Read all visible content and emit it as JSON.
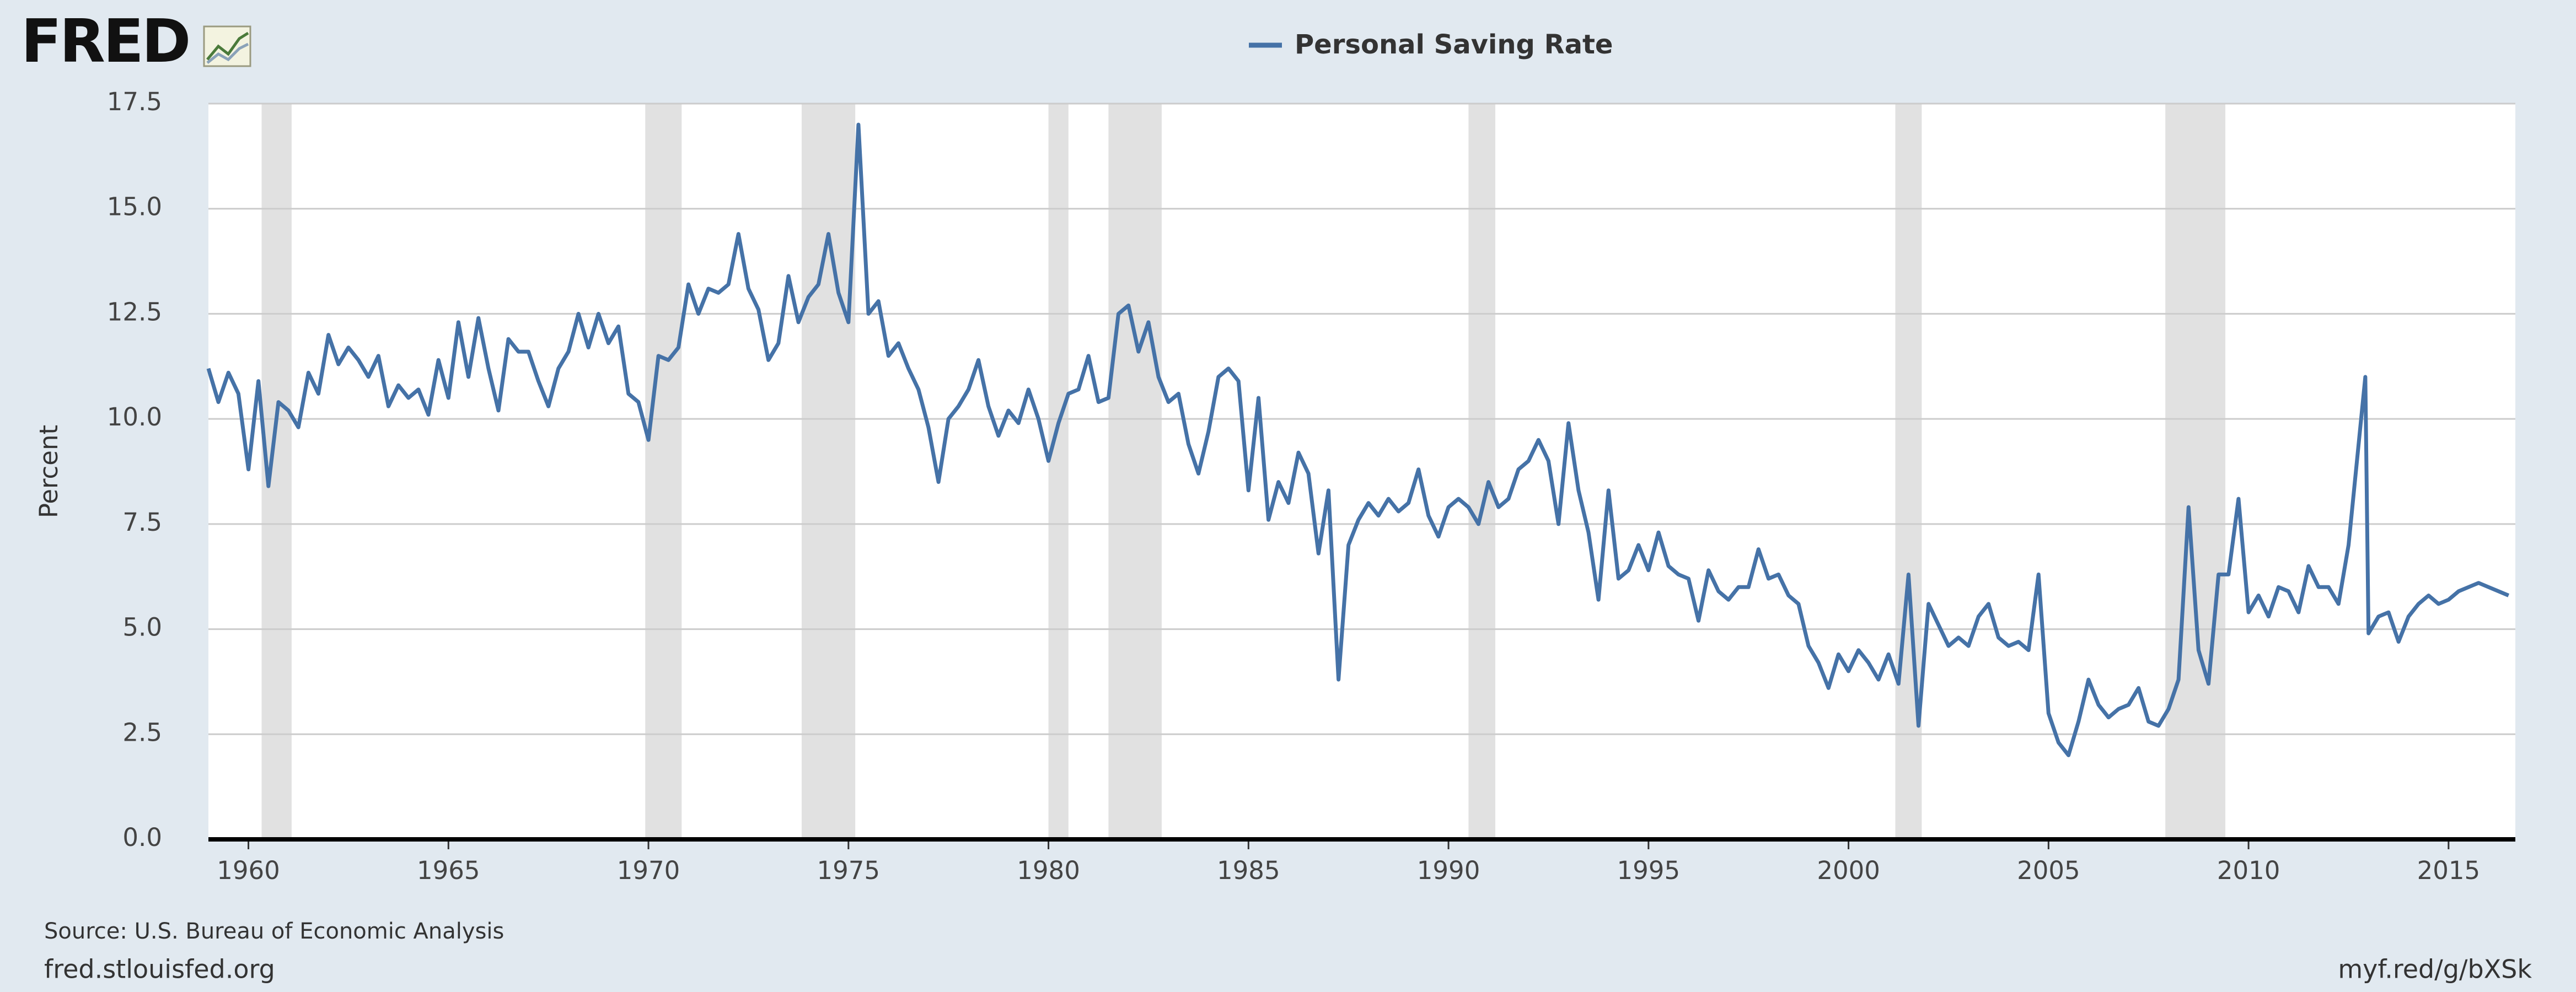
{
  "chart_data": {
    "type": "line",
    "logo": "FRED",
    "ylabel": "Percent",
    "source": "Source: U.S. Bureau of Economic Analysis",
    "site": "fred.stlouisfed.org",
    "short_url": "myf.red/g/bXSk",
    "xlim": [
      1959,
      2016.67
    ],
    "xticks": [
      1960,
      1965,
      1970,
      1975,
      1980,
      1985,
      1990,
      1995,
      2000,
      2005,
      2010,
      2015
    ],
    "ylim": [
      0,
      17.5
    ],
    "yticks": [
      {
        "value": 0,
        "label": "0.0"
      },
      2.5,
      {
        "value": 5,
        "label": "5.0"
      },
      7.5,
      {
        "value": 10,
        "label": "10.0"
      },
      12.5,
      {
        "value": 15,
        "label": "15.0"
      },
      17.5
    ],
    "grid": true,
    "recession_color": "#e1e1e1",
    "recessions": [
      [
        1960.33,
        1961.08
      ],
      [
        1969.92,
        1970.83
      ],
      [
        1973.83,
        1975.17
      ],
      [
        1980.0,
        1980.5
      ],
      [
        1981.5,
        1982.83
      ],
      [
        1990.5,
        1991.17
      ],
      [
        2001.17,
        2001.83
      ],
      [
        2007.92,
        2009.42
      ]
    ],
    "x": [
      1959,
      1959.25,
      1959.5,
      1959.75,
      1960,
      1960.25,
      1960.5,
      1960.75,
      1961,
      1961.25,
      1961.5,
      1961.75,
      1962,
      1962.25,
      1962.5,
      1962.75,
      1963,
      1963.25,
      1963.5,
      1963.75,
      1964,
      1964.25,
      1964.5,
      1964.75,
      1965,
      1965.25,
      1965.5,
      1965.75,
      1966,
      1966.25,
      1966.5,
      1966.75,
      1967,
      1967.25,
      1967.5,
      1967.75,
      1968,
      1968.25,
      1968.5,
      1968.75,
      1969,
      1969.25,
      1969.5,
      1969.75,
      1970,
      1970.25,
      1970.5,
      1970.75,
      1971,
      1971.25,
      1971.5,
      1971.75,
      1972,
      1972.25,
      1972.5,
      1972.75,
      1973,
      1973.25,
      1973.5,
      1973.75,
      1974,
      1974.25,
      1974.5,
      1974.75,
      1975,
      1975.25,
      1975.5,
      1975.75,
      1976,
      1976.25,
      1976.5,
      1976.75,
      1977,
      1977.25,
      1977.5,
      1977.75,
      1978,
      1978.25,
      1978.5,
      1978.75,
      1979,
      1979.25,
      1979.5,
      1979.75,
      1980,
      1980.25,
      1980.5,
      1980.75,
      1981,
      1981.25,
      1981.5,
      1981.75,
      1982,
      1982.25,
      1982.5,
      1982.75,
      1983,
      1983.25,
      1983.5,
      1983.75,
      1984,
      1984.25,
      1984.5,
      1984.75,
      1985,
      1985.25,
      1985.5,
      1985.75,
      1986,
      1986.25,
      1986.5,
      1986.75,
      1987,
      1987.25,
      1987.5,
      1987.75,
      1988,
      1988.25,
      1988.5,
      1988.75,
      1989,
      1989.25,
      1989.5,
      1989.75,
      1990,
      1990.25,
      1990.5,
      1990.75,
      1991,
      1991.25,
      1991.5,
      1991.75,
      1992,
      1992.25,
      1992.5,
      1992.75,
      1993,
      1993.25,
      1993.5,
      1993.75,
      1994,
      1994.25,
      1994.5,
      1994.75,
      1995,
      1995.25,
      1995.5,
      1995.75,
      1996,
      1996.25,
      1996.5,
      1996.75,
      1997,
      1997.25,
      1997.5,
      1997.75,
      1998,
      1998.25,
      1998.5,
      1998.75,
      1999,
      1999.25,
      1999.5,
      1999.75,
      2000,
      2000.25,
      2000.5,
      2000.75,
      2001,
      2001.25,
      2001.5,
      2001.75,
      2002,
      2002.25,
      2002.5,
      2002.75,
      2003,
      2003.25,
      2003.5,
      2003.75,
      2004,
      2004.25,
      2004.5,
      2004.75,
      2005,
      2005.25,
      2005.5,
      2005.75,
      2006,
      2006.25,
      2006.5,
      2006.75,
      2007,
      2007.25,
      2007.5,
      2007.75,
      2008,
      2008.25,
      2008.5,
      2008.75,
      2009,
      2009.25,
      2009.5,
      2009.75,
      2010,
      2010.25,
      2010.5,
      2010.75,
      2011,
      2011.25,
      2011.5,
      2011.75,
      2012,
      2012.25,
      2012.5,
      2012.92,
      2013,
      2013.25,
      2013.5,
      2013.75,
      2014,
      2014.25,
      2014.5,
      2014.75,
      2015,
      2015.25,
      2015.5,
      2015.75,
      2016,
      2016.25,
      2016.5
    ],
    "series": [
      {
        "name": "Personal Saving Rate",
        "color": "#4572a7",
        "values": [
          11.2,
          10.4,
          11.1,
          10.6,
          8.8,
          10.9,
          8.4,
          10.4,
          10.2,
          9.8,
          11.1,
          10.6,
          12.0,
          11.3,
          11.7,
          11.4,
          11.0,
          11.5,
          10.3,
          10.8,
          10.5,
          10.7,
          10.1,
          11.4,
          10.5,
          12.3,
          11.0,
          12.4,
          11.2,
          10.2,
          11.9,
          11.6,
          11.6,
          10.9,
          10.3,
          11.2,
          11.6,
          12.5,
          11.7,
          12.5,
          11.8,
          12.2,
          10.6,
          10.4,
          9.5,
          11.5,
          11.4,
          11.7,
          13.2,
          12.5,
          13.1,
          13.0,
          13.2,
          14.4,
          13.1,
          12.6,
          11.4,
          11.8,
          13.4,
          12.3,
          12.9,
          13.2,
          14.4,
          13.0,
          12.3,
          17.0,
          12.5,
          12.8,
          11.5,
          11.8,
          11.2,
          10.7,
          9.8,
          8.5,
          10.0,
          10.3,
          10.7,
          11.4,
          10.3,
          9.6,
          10.2,
          9.9,
          10.7,
          10.0,
          9.0,
          9.9,
          10.6,
          10.7,
          11.5,
          10.4,
          10.5,
          12.5,
          12.7,
          11.6,
          12.3,
          11.0,
          10.4,
          10.6,
          9.4,
          8.7,
          9.7,
          11.0,
          11.2,
          10.9,
          8.3,
          10.5,
          7.6,
          8.5,
          8.0,
          9.2,
          8.7,
          6.8,
          8.3,
          3.8,
          7.0,
          7.6,
          8.0,
          7.7,
          8.1,
          7.8,
          8.0,
          8.8,
          7.7,
          7.2,
          7.9,
          8.1,
          7.9,
          7.5,
          8.5,
          7.9,
          8.1,
          8.8,
          9.0,
          9.5,
          9.0,
          7.5,
          9.9,
          8.3,
          7.3,
          5.7,
          8.3,
          6.2,
          6.4,
          7.0,
          6.4,
          7.3,
          6.5,
          6.3,
          6.2,
          5.2,
          6.4,
          5.9,
          5.7,
          6.0,
          6.0,
          6.9,
          6.2,
          6.3,
          5.8,
          5.6,
          4.6,
          4.2,
          3.6,
          4.4,
          4.0,
          4.5,
          4.2,
          3.8,
          4.4,
          3.7,
          6.3,
          2.7,
          5.6,
          5.1,
          4.6,
          4.8,
          4.6,
          5.3,
          5.6,
          4.8,
          4.6,
          4.7,
          4.5,
          6.3,
          3.0,
          2.3,
          2.0,
          2.8,
          3.8,
          3.2,
          2.9,
          3.1,
          3.2,
          3.6,
          2.8,
          2.7,
          3.1,
          3.8,
          7.9,
          4.5,
          3.7,
          6.3,
          6.3,
          8.1,
          5.4,
          5.8,
          5.3,
          6.0,
          5.9,
          5.4,
          6.5,
          6.0,
          6.0,
          5.6,
          7.0,
          11.0,
          4.9,
          5.3,
          5.4,
          4.7,
          5.3,
          5.6,
          5.8,
          5.6,
          5.7,
          5.9,
          6.0,
          6.1,
          6.0,
          5.9,
          5.8
        ]
      }
    ]
  }
}
